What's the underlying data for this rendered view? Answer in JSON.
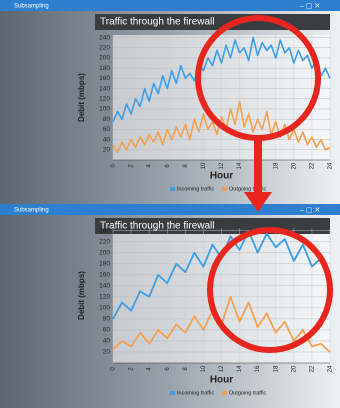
{
  "windows": [
    {
      "title": "Subsampling"
    },
    {
      "title": "Subsampling"
    }
  ],
  "chart_data": [
    {
      "type": "line",
      "title": "Traffic through the firewall",
      "x_label": "Hour",
      "y_label": "Debit (mbps)",
      "x": [
        0,
        0.5,
        1,
        1.5,
        2,
        2.5,
        3,
        3.5,
        4,
        4.5,
        5,
        5.5,
        6,
        6.5,
        7,
        7.5,
        8,
        8.5,
        9,
        9.5,
        10,
        10.5,
        11,
        11.5,
        12,
        12.5,
        13,
        13.5,
        14,
        14.5,
        15,
        15.5,
        16,
        16.5,
        17,
        17.5,
        18,
        18.5,
        19,
        19.5,
        20,
        20.5,
        21,
        21.5,
        22,
        22.5,
        23,
        23.5,
        24
      ],
      "series": [
        {
          "name": "Incoming traffic",
          "color": "#3a9ee8",
          "values": [
            75,
            95,
            80,
            110,
            90,
            120,
            105,
            140,
            115,
            150,
            130,
            165,
            140,
            175,
            150,
            185,
            160,
            170,
            155,
            190,
            175,
            200,
            185,
            215,
            190,
            225,
            200,
            235,
            210,
            220,
            195,
            240,
            205,
            230,
            215,
            225,
            200,
            235,
            210,
            220,
            190,
            215,
            195,
            205,
            180,
            195,
            165,
            180,
            160
          ]
        },
        {
          "name": "Outgoing traffic",
          "color": "#f5a050",
          "values": [
            30,
            15,
            35,
            20,
            40,
            25,
            45,
            30,
            50,
            35,
            55,
            30,
            60,
            40,
            65,
            45,
            70,
            40,
            80,
            55,
            90,
            60,
            75,
            50,
            85,
            60,
            100,
            70,
            115,
            65,
            90,
            55,
            80,
            60,
            95,
            50,
            75,
            45,
            70,
            40,
            60,
            35,
            55,
            30,
            45,
            25,
            40,
            20,
            25
          ]
        }
      ],
      "xlim": [
        0,
        24
      ],
      "xticks": [
        0,
        2,
        4,
        6,
        8,
        10,
        12,
        14,
        16,
        18,
        20,
        22,
        24
      ],
      "ylim": [
        0,
        245
      ],
      "yticks": [
        20,
        40,
        60,
        80,
        100,
        120,
        140,
        160,
        180,
        200,
        220,
        240
      ],
      "grid": true,
      "legend": "bottom"
    },
    {
      "type": "line",
      "title": "Traffic through the firewall",
      "x_label": "Hour",
      "y_label": "Debit (mbps)",
      "x": [
        0,
        1,
        2,
        3,
        4,
        5,
        6,
        7,
        8,
        9,
        10,
        11,
        12,
        13,
        14,
        15,
        16,
        17,
        18,
        19,
        20,
        21,
        22,
        23,
        24
      ],
      "series": [
        {
          "name": "Incoming traffic",
          "color": "#3a9ee8",
          "values": [
            80,
            110,
            95,
            130,
            120,
            160,
            145,
            180,
            165,
            200,
            175,
            215,
            190,
            230,
            205,
            240,
            200,
            235,
            210,
            225,
            185,
            215,
            175,
            190,
            165
          ]
        },
        {
          "name": "Outgoing traffic",
          "color": "#f5a050",
          "values": [
            25,
            40,
            30,
            55,
            35,
            60,
            45,
            70,
            55,
            85,
            60,
            95,
            70,
            120,
            75,
            110,
            65,
            90,
            55,
            75,
            40,
            60,
            30,
            35,
            20
          ]
        }
      ],
      "xlim": [
        0,
        24
      ],
      "xticks": [
        0,
        2,
        4,
        6,
        8,
        10,
        12,
        14,
        16,
        18,
        20,
        22,
        24
      ],
      "ylim": [
        0,
        245
      ],
      "yticks": [
        20,
        40,
        60,
        80,
        100,
        120,
        140,
        160,
        180,
        200,
        220,
        240
      ],
      "grid": true,
      "legend": "bottom"
    }
  ]
}
